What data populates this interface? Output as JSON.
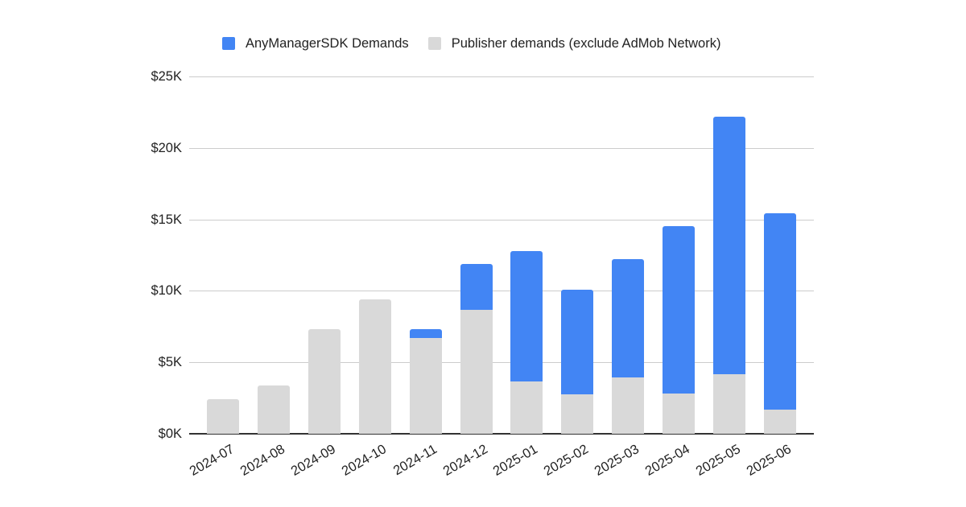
{
  "legend": {
    "items": [
      {
        "label": "AnyManagerSDK Demands",
        "color": "#4285f4"
      },
      {
        "label": "Publisher demands (exclude AdMob Network)",
        "color": "#d9d9d9"
      }
    ]
  },
  "y_axis": {
    "ticks": [
      "$0K",
      "$5K",
      "$10K",
      "$15K",
      "$20K",
      "$25K"
    ]
  },
  "x_axis": {
    "ticks": [
      "2024-07",
      "2024-08",
      "2024-09",
      "2024-10",
      "2024-11",
      "2024-12",
      "2025-01",
      "2025-02",
      "2025-03",
      "2025-04",
      "2025-05",
      "2025-06"
    ]
  },
  "colors": {
    "anymanager": "#4285f4",
    "publisher": "#d9d9d9",
    "grid": "#cccccc",
    "axis": "#333333"
  },
  "chart_data": {
    "type": "bar",
    "stacked": true,
    "title": "",
    "xlabel": "",
    "ylabel": "",
    "ylim": [
      0,
      25000
    ],
    "y_tick_labels": [
      "$0K",
      "$5K",
      "$10K",
      "$15K",
      "$20K",
      "$25K"
    ],
    "grid": true,
    "legend_position": "top",
    "categories": [
      "2024-07",
      "2024-08",
      "2024-09",
      "2024-10",
      "2024-11",
      "2024-12",
      "2025-01",
      "2025-02",
      "2025-03",
      "2025-04",
      "2025-05",
      "2025-06"
    ],
    "series": [
      {
        "name": "Publisher demands (exclude AdMob Network)",
        "color": "#d9d9d9",
        "values": [
          2400,
          3400,
          7300,
          9400,
          6700,
          8700,
          3700,
          2800,
          3900,
          2800,
          4200,
          1650
        ]
      },
      {
        "name": "AnyManagerSDK Demands",
        "color": "#4285f4",
        "values": [
          0,
          0,
          0,
          0,
          600,
          3200,
          9100,
          7300,
          8300,
          11700,
          18000,
          13750
        ]
      }
    ]
  }
}
